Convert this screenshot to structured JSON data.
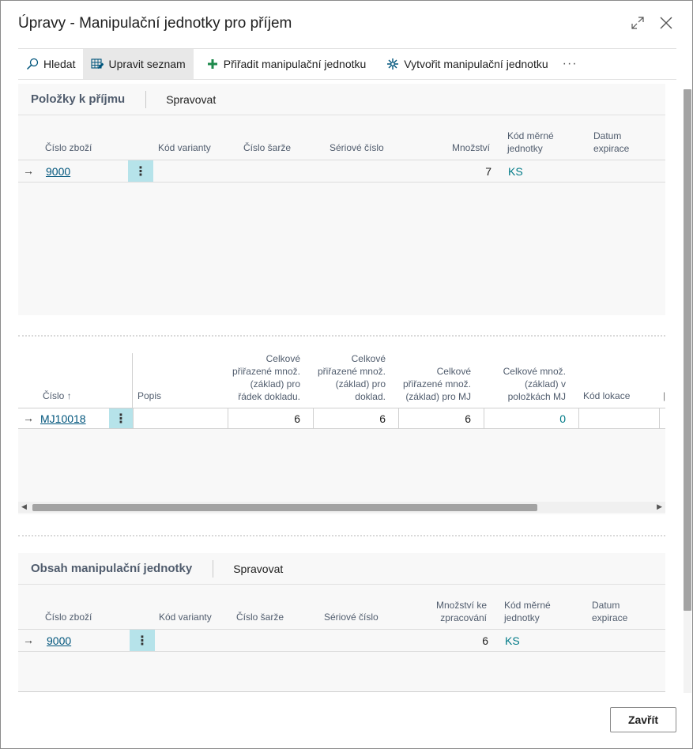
{
  "dialog": {
    "title": "Úpravy - Manipulační jednotky pro příjem"
  },
  "actions": {
    "search": "Hledat",
    "edit_list": "Upravit seznam",
    "assign": "Přiřadit manipulační jednotku",
    "create": "Vytvořit manipulační jednotku",
    "more": "···"
  },
  "receipt_lines": {
    "title": "Položky k příjmu",
    "manage": "Spravovat",
    "columns": {
      "item_no": "Číslo zboží",
      "variant": "Kód varianty",
      "lot": "Číslo šarže",
      "serial": "Sériové číslo",
      "qty": "Množství",
      "uom_1": "Kód měrné",
      "uom_2": "jednotky",
      "exp_1": "Datum",
      "exp_2": "expirace"
    },
    "rows": [
      {
        "arrow": "→",
        "item_no": "9000",
        "qty": "7",
        "uom": "KS"
      }
    ]
  },
  "hu_list": {
    "columns": {
      "no": "Číslo ↑",
      "desc": "Popis",
      "c1": [
        "Celkové",
        "přiřazené množ.",
        "(základ) pro",
        "řádek dokladu."
      ],
      "c2": [
        "Celkové",
        "přiřazené množ.",
        "(základ) pro",
        "doklad."
      ],
      "c3": [
        "Celkové",
        "přiřazené množ.",
        "(základ) pro MJ"
      ],
      "c4": [
        "Celkové množ.",
        "(základ) v",
        "položkách MJ"
      ],
      "location": "Kód lokace"
    },
    "rows": [
      {
        "arrow": "→",
        "no": "MJ10018",
        "c1": "6",
        "c2": "6",
        "c3": "6",
        "c4": "0"
      }
    ]
  },
  "hu_content": {
    "title": "Obsah manipulační jednotky",
    "manage": "Spravovat",
    "columns": {
      "item_no": "Číslo zboží",
      "variant": "Kód varianty",
      "lot": "Číslo šarže",
      "serial": "Sériové číslo",
      "qty_1": "Množství ke",
      "qty_2": "zpracování",
      "uom_1": "Kód měrné",
      "uom_2": "jednotky",
      "exp_1": "Datum",
      "exp_2": "expirace"
    },
    "rows": [
      {
        "arrow": "→",
        "item_no": "9000",
        "qty": "6",
        "uom": "KS"
      }
    ]
  },
  "footer": {
    "close": "Zavřít"
  }
}
